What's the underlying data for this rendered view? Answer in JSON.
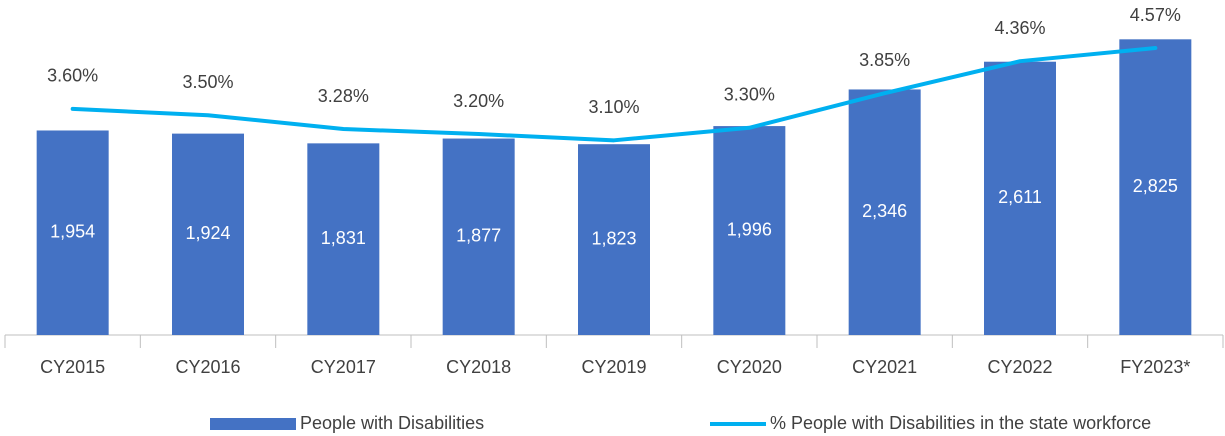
{
  "chart_data": {
    "type": "bar_line",
    "categories": [
      "CY2015",
      "CY2016",
      "CY2017",
      "CY2018",
      "CY2019",
      "CY2020",
      "CY2021",
      "CY2022",
      "FY2023*"
    ],
    "series": [
      {
        "name": "People with Disabilities",
        "type": "bar",
        "color": "#4472c4",
        "values": [
          1954,
          1924,
          1831,
          1877,
          1823,
          1996,
          2346,
          2611,
          2825
        ],
        "value_labels": [
          "1,954",
          "1,924",
          "1,831",
          "1,877",
          "1,823",
          "1,996",
          "2,346",
          "2,611",
          "2,825"
        ]
      },
      {
        "name": "% People with Disabilities in the state workforce",
        "type": "line",
        "axis": "y2",
        "color": "#00b0f0",
        "values": [
          3.6,
          3.5,
          3.28,
          3.2,
          3.1,
          3.3,
          3.85,
          4.36,
          4.57
        ],
        "value_labels": [
          "3.60%",
          "3.50%",
          "3.28%",
          "3.20%",
          "3.10%",
          "3.30%",
          "3.85%",
          "4.36%",
          "4.57%"
        ]
      }
    ],
    "ylim": [
      0,
      3000
    ],
    "y2lim": [
      0,
      5
    ],
    "legend": "bottom"
  }
}
